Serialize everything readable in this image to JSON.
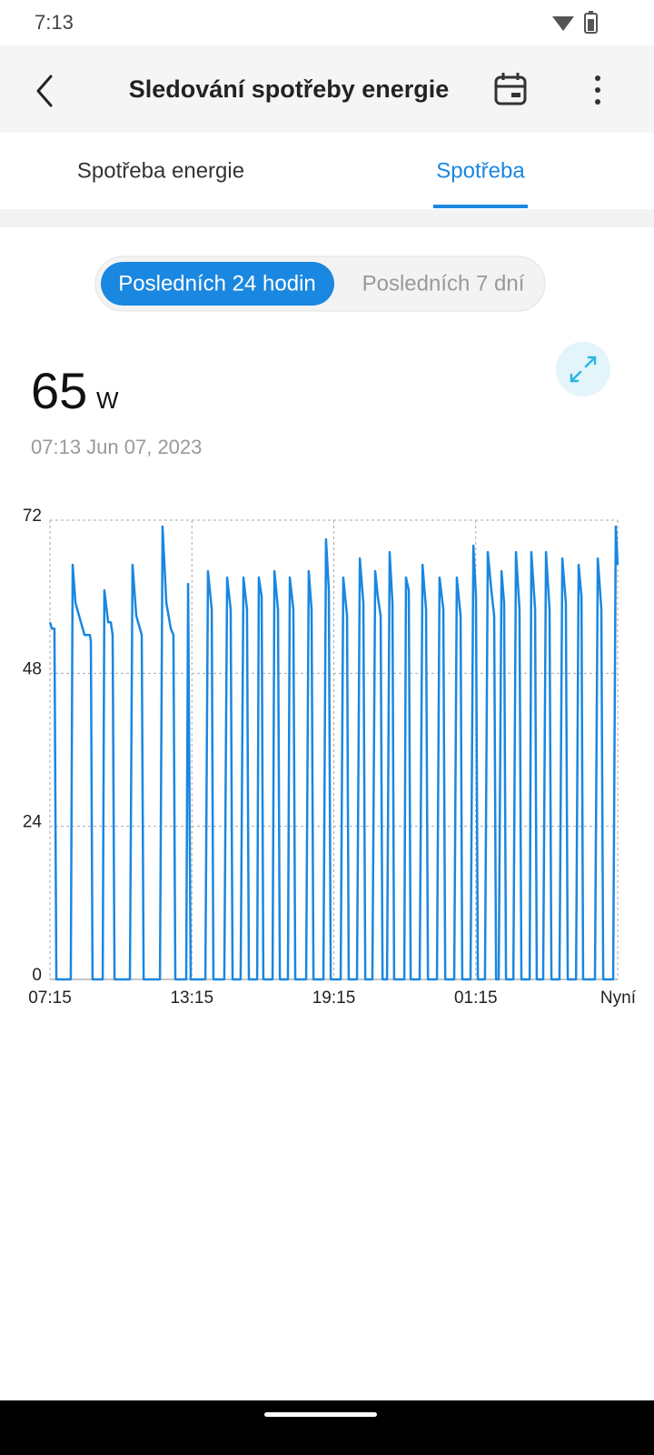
{
  "status_bar": {
    "time": "7:13"
  },
  "header": {
    "title": "Sledování spotřeby energie"
  },
  "tabs": [
    "Spotřeba energie",
    "Spotřeba"
  ],
  "range_toggle": [
    "Posledních 24 hodin",
    "Posledních 7 dní"
  ],
  "reading": {
    "value": 65,
    "unit": "W",
    "timestamp": "07:13  Jun 07, 2023"
  },
  "chart_data": {
    "type": "line",
    "color": "#1a87e0",
    "grid": true,
    "xlim": [
      0,
      24
    ],
    "xticks": [
      {
        "value": 0,
        "label": "07:15"
      },
      {
        "value": 6,
        "label": "13:15"
      },
      {
        "value": 12,
        "label": "19:15"
      },
      {
        "value": 18,
        "label": "01:15"
      },
      {
        "value": 24,
        "label": "Nyní"
      }
    ],
    "ylim": [
      0,
      72
    ],
    "yticks": [
      0,
      24,
      48,
      72
    ],
    "x": [
      0,
      0.08,
      0.19,
      0.27,
      0.88,
      0.96,
      1.08,
      1.46,
      1.69,
      1.73,
      1.8,
      2.23,
      2.3,
      2.46,
      2.57,
      2.65,
      2.73,
      3.38,
      3.49,
      3.65,
      3.88,
      3.96,
      4.65,
      4.76,
      4.92,
      5.11,
      5.22,
      5.3,
      5.76,
      5.84,
      5.95,
      6.57,
      6.68,
      6.84,
      6.91,
      7.37,
      7.49,
      7.64,
      7.72,
      8.06,
      8.18,
      8.33,
      8.41,
      8.76,
      8.83,
      8.95,
      9.02,
      9.41,
      9.49,
      9.64,
      9.72,
      10.06,
      10.14,
      10.29,
      10.37,
      10.83,
      10.94,
      11.06,
      11.14,
      11.56,
      11.67,
      11.79,
      11.87,
      12.29,
      12.4,
      12.56,
      12.63,
      12.98,
      13.1,
      13.25,
      13.33,
      13.63,
      13.75,
      13.86,
      13.98,
      14.06,
      14.25,
      14.36,
      14.48,
      14.55,
      14.98,
      15.05,
      15.17,
      15.25,
      15.63,
      15.75,
      15.9,
      15.98,
      16.36,
      16.47,
      16.63,
      16.71,
      17.09,
      17.2,
      17.36,
      17.43,
      17.78,
      17.9,
      18.01,
      18.09,
      18.39,
      18.51,
      18.66,
      18.78,
      18.86,
      18.97,
      19.09,
      19.2,
      19.28,
      19.59,
      19.7,
      19.85,
      19.93,
      20.28,
      20.35,
      20.51,
      20.58,
      20.85,
      20.97,
      21.12,
      21.2,
      21.54,
      21.66,
      21.81,
      21.89,
      22.24,
      22.35,
      22.47,
      22.54,
      23.04,
      23.16,
      23.31,
      23.39,
      23.81,
      23.92,
      24.0
    ],
    "values": [
      56,
      55,
      55,
      0,
      0,
      65,
      59,
      54,
      54,
      53,
      0,
      0,
      61,
      56,
      56,
      54,
      0,
      0,
      65,
      57,
      54,
      0,
      0,
      71,
      59,
      55,
      54,
      0,
      0,
      62,
      0,
      0,
      64,
      58,
      0,
      0,
      63,
      58,
      0,
      0,
      63,
      58,
      0,
      0,
      63,
      60,
      0,
      0,
      64,
      58,
      0,
      0,
      63,
      58,
      0,
      0,
      64,
      58,
      0,
      0,
      69,
      61,
      0,
      0,
      63,
      57,
      0,
      0,
      66,
      59,
      0,
      0,
      64,
      60,
      57,
      0,
      0,
      67,
      59,
      0,
      0,
      63,
      61,
      0,
      0,
      65,
      58,
      0,
      0,
      63,
      58,
      0,
      0,
      63,
      57,
      0,
      0,
      68,
      60,
      0,
      0,
      67,
      61,
      57,
      0,
      0,
      64,
      59,
      0,
      0,
      67,
      58,
      0,
      0,
      67,
      58,
      0,
      0,
      67,
      58,
      0,
      0,
      66,
      59,
      0,
      0,
      65,
      60,
      0,
      0,
      66,
      58,
      0,
      0,
      71,
      65
    ]
  }
}
